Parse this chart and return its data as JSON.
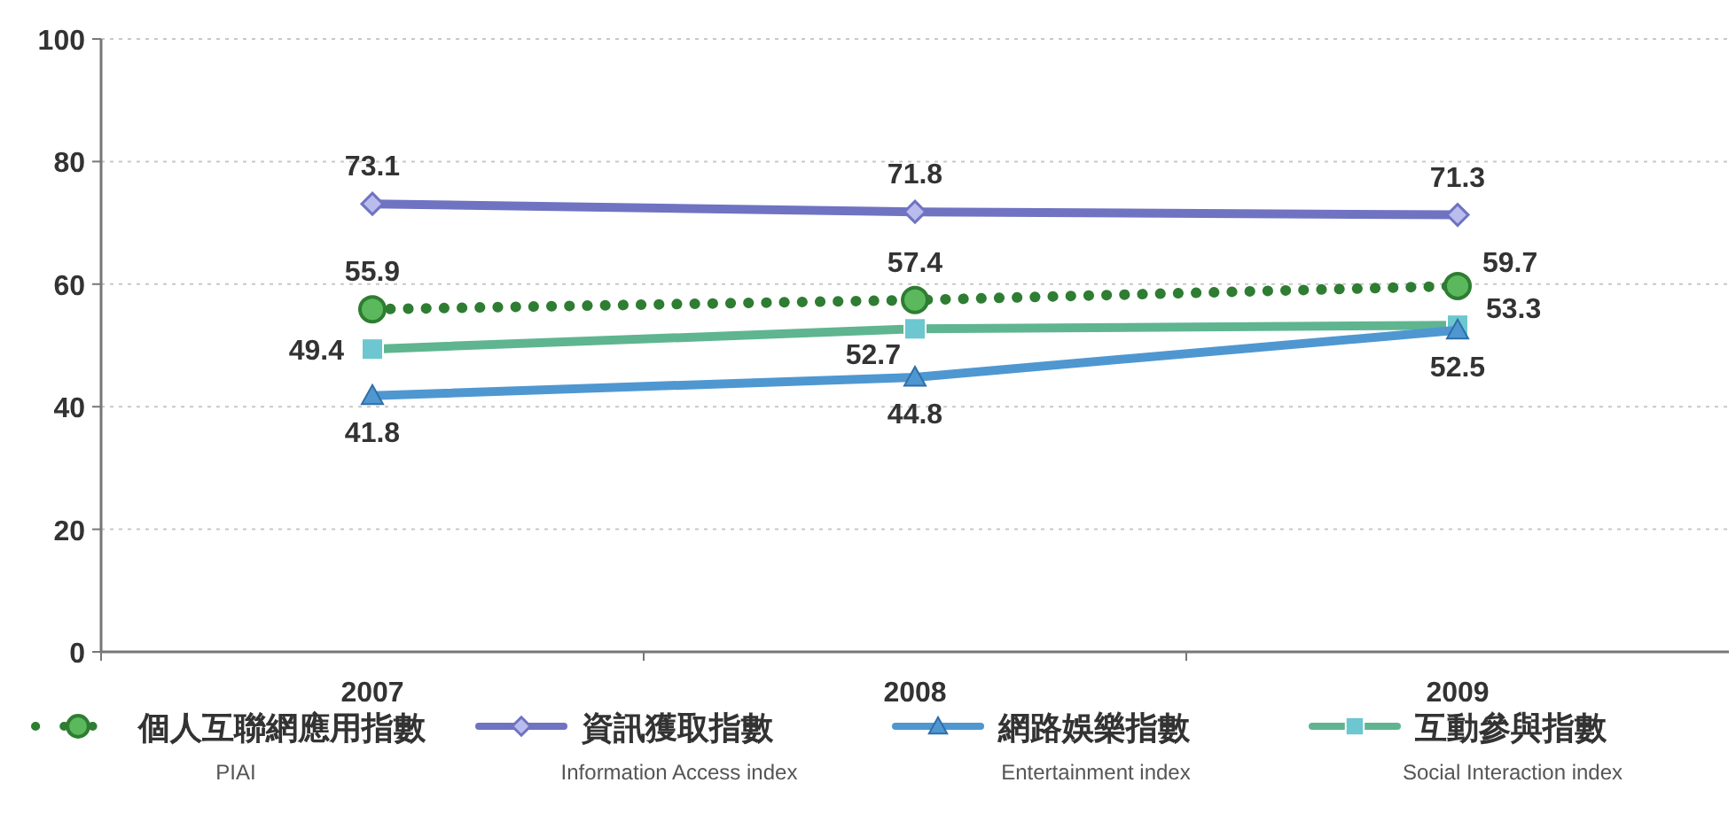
{
  "chart_data": {
    "type": "line",
    "categories": [
      "2007",
      "2008",
      "2009"
    ],
    "ylim": [
      0,
      100
    ],
    "yticks": [
      0,
      20,
      40,
      60,
      80,
      100
    ],
    "grid": "y",
    "legend": "bottom",
    "data_labels": true,
    "series": [
      {
        "name": "個人互聯網應用指數\nPIAI",
        "color": "#2e7d32",
        "values": [
          55.9,
          57.4,
          59.7
        ],
        "marker": "circle",
        "line_style": "dotted"
      },
      {
        "name": "資訊獲取指數\nInformation Access index",
        "color": "#6f73c2",
        "values": [
          73.1,
          71.8,
          71.3
        ],
        "marker": "diamond",
        "line_style": "solid"
      },
      {
        "name": "網路娛樂指數\nEntertainment index",
        "color": "#4f97d1",
        "values": [
          41.8,
          44.8,
          52.5
        ],
        "marker": "triangle",
        "line_style": "solid"
      },
      {
        "name": "互動參與指數\nSocial Interaction index",
        "color": "#5fb58f",
        "values": [
          49.4,
          52.7,
          53.3
        ],
        "marker": "square",
        "line_style": "solid"
      }
    ]
  }
}
